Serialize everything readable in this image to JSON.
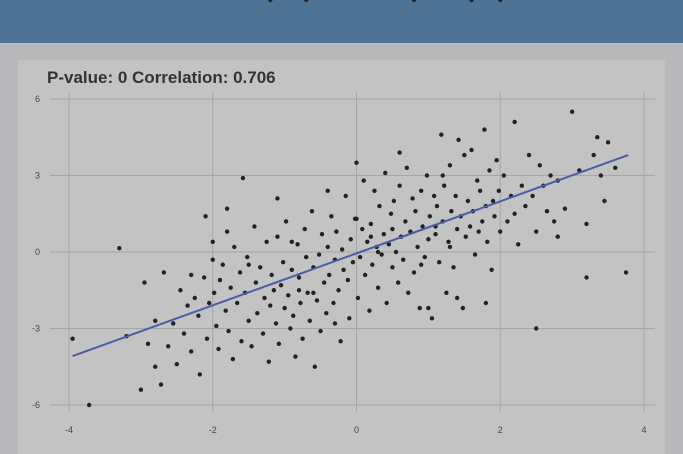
{
  "colors": {
    "header_bar": "#4f7394",
    "page_background": "#b9b9bb",
    "panel_background": "#c3c3c4",
    "grid": "#a6a6a8",
    "points": "#222222",
    "fit_line": "#4a5da5",
    "title_text": "#333333"
  },
  "chart_title": "P-value: 0 Correlation: 0.706",
  "chart_data": {
    "type": "scatter",
    "title": "P-value: 0 Correlation: 0.706",
    "xlabel": "",
    "ylabel": "",
    "xlim": [
      -4.1,
      4.0
    ],
    "ylim": [
      -6.3,
      6.1
    ],
    "x_ticks": [
      -4,
      -2,
      0,
      2,
      4
    ],
    "y_ticks": [
      -6,
      -3,
      0,
      3,
      6
    ],
    "grid": true,
    "correlation": 0.706,
    "p_value": 0,
    "fit_line": {
      "x": [
        -3.95,
        3.78
      ],
      "y": [
        -4.08,
        3.8
      ]
    },
    "points_x": [
      -3.95,
      -3.72,
      -3.3,
      -3.2,
      -3.0,
      -2.95,
      -2.9,
      -2.8,
      -2.8,
      -2.72,
      -2.68,
      -2.62,
      -2.55,
      -2.5,
      -2.45,
      -2.4,
      -2.35,
      -2.3,
      -2.3,
      -2.25,
      -2.2,
      -2.18,
      -2.12,
      -2.1,
      -2.08,
      -2.05,
      -2.0,
      -1.98,
      -1.95,
      -1.92,
      -1.9,
      -1.86,
      -1.82,
      -1.8,
      -1.78,
      -1.75,
      -1.72,
      -1.7,
      -1.66,
      -1.62,
      -1.6,
      -1.58,
      -1.55,
      -1.52,
      -1.5,
      -1.46,
      -1.42,
      -1.4,
      -1.38,
      -1.34,
      -1.3,
      -1.28,
      -1.25,
      -1.22,
      -1.2,
      -1.18,
      -1.15,
      -1.12,
      -1.1,
      -1.08,
      -1.05,
      -1.02,
      -1.0,
      -0.98,
      -0.95,
      -0.92,
      -0.9,
      -0.88,
      -0.85,
      -0.82,
      -0.8,
      -0.78,
      -0.75,
      -0.72,
      -0.7,
      -0.68,
      -0.65,
      -0.62,
      -0.6,
      -0.58,
      -0.55,
      -0.52,
      -0.5,
      -0.48,
      -0.45,
      -0.42,
      -0.4,
      -0.38,
      -0.35,
      -0.32,
      -0.3,
      -0.28,
      -0.25,
      -0.22,
      -0.2,
      -0.18,
      -0.15,
      -0.12,
      -0.1,
      -0.08,
      -0.05,
      -0.02,
      0.0,
      0.02,
      0.05,
      0.08,
      0.1,
      0.12,
      0.15,
      0.18,
      0.2,
      0.22,
      0.25,
      0.28,
      0.3,
      0.32,
      0.35,
      0.38,
      0.4,
      0.42,
      0.45,
      0.48,
      0.5,
      0.52,
      0.55,
      0.58,
      0.6,
      0.62,
      0.65,
      0.68,
      0.7,
      0.72,
      0.75,
      0.78,
      0.8,
      0.82,
      0.85,
      0.88,
      0.9,
      0.92,
      0.95,
      0.98,
      1.0,
      1.02,
      1.05,
      1.08,
      1.1,
      1.12,
      1.15,
      1.18,
      1.2,
      1.22,
      1.25,
      1.28,
      1.3,
      1.32,
      1.35,
      1.38,
      1.4,
      1.42,
      1.45,
      1.48,
      1.5,
      1.52,
      1.55,
      1.58,
      1.6,
      1.62,
      1.65,
      1.68,
      1.7,
      1.72,
      1.75,
      1.78,
      1.8,
      1.82,
      1.85,
      1.88,
      1.9,
      1.92,
      1.95,
      1.98,
      2.0,
      2.05,
      2.1,
      2.15,
      2.2,
      2.25,
      2.3,
      2.35,
      2.4,
      2.45,
      2.5,
      2.55,
      2.6,
      2.65,
      2.7,
      2.75,
      2.8,
      2.9,
      3.0,
      3.1,
      3.2,
      3.3,
      3.35,
      3.4,
      3.45,
      3.5,
      3.6,
      3.75,
      -1.5,
      -0.9,
      -0.6,
      0.0,
      0.3,
      0.2,
      0.9,
      1.2,
      1.3,
      1.8,
      2.2,
      -0.4,
      -1.1,
      0.6,
      1.0,
      1.4,
      2.5,
      2.8,
      3.2,
      -2.0,
      -1.8,
      -0.8,
      -0.3,
      0.5,
      1.1,
      1.6,
      -1.2,
      -0.7,
      0.8,
      2.0
    ],
    "points_y": [
      -3.4,
      -6.0,
      0.15,
      -3.3,
      -5.4,
      -1.2,
      -3.6,
      -2.7,
      -4.5,
      -5.2,
      -0.8,
      -3.7,
      -2.8,
      -4.4,
      -1.5,
      -3.2,
      -2.1,
      -0.9,
      -3.9,
      -1.8,
      -2.5,
      -4.8,
      -1.0,
      1.4,
      -3.4,
      -2.0,
      -0.3,
      -1.6,
      -2.9,
      -3.8,
      -1.1,
      -0.5,
      -2.3,
      0.8,
      -3.1,
      -1.4,
      -4.2,
      0.2,
      -2.0,
      -0.8,
      -3.5,
      2.9,
      -1.6,
      -0.2,
      -2.7,
      -3.7,
      1.0,
      -1.2,
      -2.4,
      -0.6,
      -3.2,
      -1.8,
      0.4,
      -4.3,
      -2.1,
      -0.9,
      -1.5,
      -2.8,
      0.6,
      -3.6,
      -1.3,
      -0.4,
      -2.2,
      1.2,
      -1.7,
      -3.0,
      -0.7,
      -2.5,
      -4.1,
      0.3,
      -1.0,
      -2.0,
      -3.4,
      0.9,
      -0.2,
      -1.6,
      -2.7,
      1.6,
      -0.6,
      -4.5,
      -1.9,
      -0.1,
      -3.1,
      0.7,
      -1.2,
      -2.4,
      0.2,
      -0.9,
      1.4,
      -2.0,
      -0.3,
      0.8,
      -1.5,
      -3.5,
      0.1,
      -0.7,
      2.2,
      -1.1,
      -2.6,
      0.5,
      -0.4,
      1.3,
      3.5,
      -1.8,
      -0.2,
      0.9,
      2.8,
      -0.9,
      0.4,
      -2.3,
      1.1,
      -0.5,
      2.4,
      0.2,
      -1.4,
      1.8,
      -0.1,
      0.7,
      3.1,
      -2.0,
      0.3,
      1.5,
      -0.6,
      2.0,
      0.0,
      -1.2,
      2.6,
      0.6,
      -0.3,
      1.2,
      3.3,
      -1.6,
      0.8,
      2.1,
      -0.8,
      1.6,
      0.2,
      -2.2,
      2.4,
      1.0,
      -0.2,
      3.0,
      0.5,
      1.4,
      -2.6,
      2.2,
      0.7,
      1.8,
      -0.4,
      4.6,
      1.2,
      2.6,
      -1.6,
      0.4,
      3.4,
      1.6,
      -0.6,
      2.2,
      0.9,
      4.4,
      1.4,
      -2.2,
      3.8,
      0.6,
      2.0,
      1.0,
      4.0,
      1.6,
      -0.1,
      2.8,
      0.8,
      2.4,
      1.2,
      4.8,
      1.8,
      0.4,
      3.2,
      -0.7,
      2.0,
      1.4,
      3.6,
      2.4,
      0.8,
      3.0,
      1.2,
      2.2,
      5.1,
      0.3,
      2.6,
      1.8,
      3.8,
      2.2,
      0.8,
      3.4,
      2.6,
      1.6,
      3.0,
      1.2,
      2.8,
      1.7,
      5.5,
      3.2,
      1.1,
      3.8,
      4.5,
      3.0,
      2.0,
      4.3,
      3.3,
      -0.8,
      -0.5,
      0.4,
      -1.6,
      1.3,
      0.0,
      0.6,
      -0.5,
      3.0,
      0.2,
      -2.0,
      1.5,
      2.4,
      2.1,
      3.9,
      -2.2,
      -1.8,
      -3.0,
      0.6,
      -1.0,
      0.4,
      1.7,
      -1.5,
      -2.8,
      0.9,
      1.0
    ]
  }
}
